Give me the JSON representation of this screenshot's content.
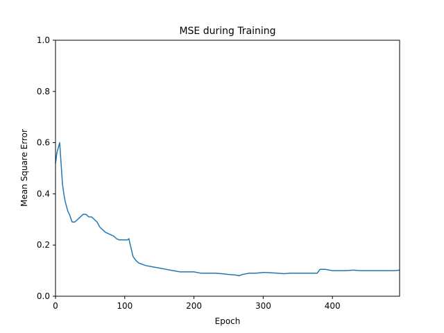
{
  "chart_data": {
    "type": "line",
    "title": "MSE during Training",
    "xlabel": "Epoch",
    "ylabel": "Mean Square Error",
    "xlim": [
      0,
      497
    ],
    "ylim": [
      0,
      1.0
    ],
    "x_ticks": [
      "0",
      "100",
      "200",
      "300",
      "400"
    ],
    "y_ticks": [
      "0.0",
      "0.2",
      "0.4",
      "0.6",
      "0.8",
      "1.0"
    ],
    "grid": false,
    "legend": "none",
    "line_color": "#1f77b4",
    "series": [
      {
        "x": [
          0,
          2,
          4,
          6,
          8,
          10,
          12,
          14,
          16,
          18,
          20,
          24,
          28,
          32,
          36,
          40,
          44,
          48,
          52,
          56,
          60,
          64,
          68,
          72,
          76,
          80,
          84,
          88,
          92,
          96,
          100,
          104,
          106,
          108,
          112,
          116,
          120,
          130,
          140,
          150,
          160,
          170,
          180,
          190,
          200,
          210,
          220,
          230,
          240,
          250,
          260,
          265,
          270,
          280,
          290,
          300,
          310,
          320,
          330,
          340,
          350,
          360,
          370,
          378,
          382,
          390,
          400,
          410,
          420,
          430,
          440,
          450,
          460,
          470,
          480,
          490,
          497
        ],
        "y": [
          0.52,
          0.56,
          0.58,
          0.6,
          0.52,
          0.44,
          0.4,
          0.37,
          0.35,
          0.33,
          0.32,
          0.29,
          0.29,
          0.3,
          0.31,
          0.32,
          0.32,
          0.31,
          0.31,
          0.3,
          0.29,
          0.27,
          0.26,
          0.25,
          0.245,
          0.24,
          0.235,
          0.225,
          0.22,
          0.22,
          0.22,
          0.22,
          0.225,
          0.2,
          0.155,
          0.14,
          0.13,
          0.12,
          0.115,
          0.11,
          0.105,
          0.1,
          0.095,
          0.095,
          0.095,
          0.09,
          0.09,
          0.09,
          0.088,
          0.085,
          0.083,
          0.08,
          0.085,
          0.09,
          0.09,
          0.093,
          0.092,
          0.09,
          0.088,
          0.09,
          0.09,
          0.09,
          0.09,
          0.09,
          0.105,
          0.105,
          0.1,
          0.1,
          0.1,
          0.102,
          0.1,
          0.1,
          0.1,
          0.1,
          0.1,
          0.1,
          0.102
        ]
      }
    ]
  }
}
